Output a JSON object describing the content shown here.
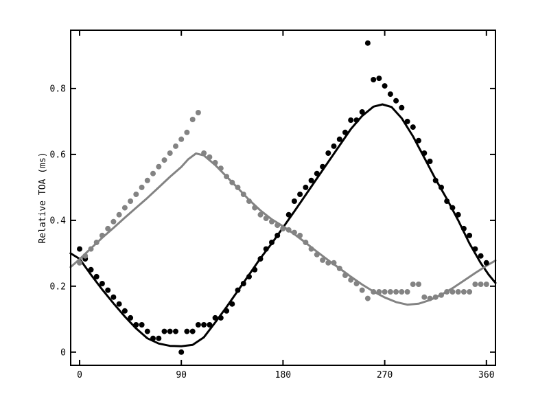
{
  "figure": {
    "background": "#ffffff",
    "description": "Scatter plot of relative pulse time of arrival versus angle (0-360 deg) for two data series (black and gray) with smooth fitted curves"
  },
  "chart_data": {
    "type": "scatter",
    "title": "",
    "xlabel": "",
    "ylabel": "Relative TOA (ms)",
    "x_ticks": [
      0,
      90,
      180,
      270,
      360
    ],
    "x_tick_labels": [
      "0",
      "90",
      "180",
      "270",
      "360"
    ],
    "y_ticks": [
      0,
      0.2,
      0.4,
      0.6,
      0.8
    ],
    "y_tick_labels": [
      "0",
      "0.2",
      "0.4",
      "0.6",
      "0.8"
    ],
    "xlim": [
      -7.9,
      368
    ],
    "ylim": [
      -0.04,
      0.977
    ],
    "grid": false,
    "legend_position": "none",
    "tick_style": "inward, all four sides, major only",
    "series": [
      {
        "name": "black-series",
        "color": "#000000",
        "marker": "filled-circle",
        "points": [
          [
            0,
            0.313
          ],
          [
            5,
            0.283
          ],
          [
            10,
            0.25
          ],
          [
            15,
            0.229
          ],
          [
            20,
            0.208
          ],
          [
            25,
            0.188
          ],
          [
            30,
            0.167
          ],
          [
            35,
            0.146
          ],
          [
            40,
            0.125
          ],
          [
            45,
            0.104
          ],
          [
            50,
            0.083
          ],
          [
            55,
            0.083
          ],
          [
            60,
            0.063
          ],
          [
            65,
            0.042
          ],
          [
            70,
            0.042
          ],
          [
            75,
            0.063
          ],
          [
            80,
            0.063
          ],
          [
            85,
            0.063
          ],
          [
            90,
            0.0
          ],
          [
            95,
            0.063
          ],
          [
            100,
            0.063
          ],
          [
            105,
            0.083
          ],
          [
            110,
            0.083
          ],
          [
            115,
            0.083
          ],
          [
            120,
            0.104
          ],
          [
            125,
            0.104
          ],
          [
            130,
            0.125
          ],
          [
            135,
            0.146
          ],
          [
            140,
            0.188
          ],
          [
            145,
            0.208
          ],
          [
            150,
            0.229
          ],
          [
            155,
            0.25
          ],
          [
            160,
            0.283
          ],
          [
            165,
            0.313
          ],
          [
            170,
            0.333
          ],
          [
            175,
            0.354
          ],
          [
            180,
            0.375
          ],
          [
            185,
            0.417
          ],
          [
            190,
            0.458
          ],
          [
            195,
            0.479
          ],
          [
            200,
            0.5
          ],
          [
            205,
            0.521
          ],
          [
            210,
            0.542
          ],
          [
            215,
            0.563
          ],
          [
            220,
            0.604
          ],
          [
            225,
            0.625
          ],
          [
            230,
            0.646
          ],
          [
            235,
            0.667
          ],
          [
            240,
            0.704
          ],
          [
            245,
            0.704
          ],
          [
            250,
            0.729
          ],
          [
            255,
            0.938
          ],
          [
            260,
            0.827
          ],
          [
            265,
            0.831
          ],
          [
            270,
            0.808
          ],
          [
            275,
            0.783
          ],
          [
            280,
            0.763
          ],
          [
            285,
            0.742
          ],
          [
            290,
            0.7
          ],
          [
            295,
            0.683
          ],
          [
            300,
            0.642
          ],
          [
            305,
            0.604
          ],
          [
            310,
            0.579
          ],
          [
            315,
            0.521
          ],
          [
            320,
            0.5
          ],
          [
            325,
            0.458
          ],
          [
            330,
            0.438
          ],
          [
            335,
            0.417
          ],
          [
            340,
            0.375
          ],
          [
            345,
            0.354
          ],
          [
            350,
            0.313
          ],
          [
            355,
            0.292
          ],
          [
            360,
            0.271
          ]
        ],
        "fit_curve": [
          [
            -8,
            0.3
          ],
          [
            0,
            0.283
          ],
          [
            10,
            0.235
          ],
          [
            20,
            0.19
          ],
          [
            30,
            0.148
          ],
          [
            40,
            0.108
          ],
          [
            50,
            0.072
          ],
          [
            60,
            0.042
          ],
          [
            70,
            0.026
          ],
          [
            80,
            0.019
          ],
          [
            90,
            0.018
          ],
          [
            100,
            0.022
          ],
          [
            110,
            0.045
          ],
          [
            120,
            0.09
          ],
          [
            130,
            0.137
          ],
          [
            140,
            0.186
          ],
          [
            150,
            0.235
          ],
          [
            160,
            0.285
          ],
          [
            170,
            0.33
          ],
          [
            180,
            0.378
          ],
          [
            190,
            0.427
          ],
          [
            200,
            0.477
          ],
          [
            210,
            0.527
          ],
          [
            220,
            0.577
          ],
          [
            230,
            0.627
          ],
          [
            240,
            0.677
          ],
          [
            250,
            0.717
          ],
          [
            260,
            0.745
          ],
          [
            268,
            0.752
          ],
          [
            276,
            0.744
          ],
          [
            285,
            0.71
          ],
          [
            295,
            0.655
          ],
          [
            305,
            0.59
          ],
          [
            315,
            0.525
          ],
          [
            325,
            0.465
          ],
          [
            335,
            0.4
          ],
          [
            345,
            0.33
          ],
          [
            355,
            0.27
          ],
          [
            362,
            0.235
          ],
          [
            368,
            0.21
          ]
        ]
      },
      {
        "name": "gray-series",
        "color": "#838383",
        "marker": "filled-circle",
        "points": [
          [
            0,
            0.271
          ],
          [
            5,
            0.292
          ],
          [
            10,
            0.313
          ],
          [
            15,
            0.333
          ],
          [
            20,
            0.354
          ],
          [
            25,
            0.375
          ],
          [
            30,
            0.396
          ],
          [
            35,
            0.417
          ],
          [
            40,
            0.438
          ],
          [
            45,
            0.458
          ],
          [
            50,
            0.479
          ],
          [
            55,
            0.5
          ],
          [
            60,
            0.521
          ],
          [
            65,
            0.542
          ],
          [
            70,
            0.563
          ],
          [
            75,
            0.583
          ],
          [
            80,
            0.604
          ],
          [
            85,
            0.625
          ],
          [
            90,
            0.646
          ],
          [
            95,
            0.667
          ],
          [
            100,
            0.706
          ],
          [
            105,
            0.727
          ],
          [
            110,
            0.604
          ],
          [
            115,
            0.592
          ],
          [
            120,
            0.575
          ],
          [
            125,
            0.558
          ],
          [
            130,
            0.533
          ],
          [
            135,
            0.515
          ],
          [
            140,
            0.5
          ],
          [
            145,
            0.479
          ],
          [
            150,
            0.458
          ],
          [
            155,
            0.438
          ],
          [
            160,
            0.417
          ],
          [
            165,
            0.406
          ],
          [
            170,
            0.396
          ],
          [
            175,
            0.385
          ],
          [
            180,
            0.375
          ],
          [
            185,
            0.371
          ],
          [
            190,
            0.363
          ],
          [
            195,
            0.354
          ],
          [
            200,
            0.333
          ],
          [
            205,
            0.313
          ],
          [
            210,
            0.296
          ],
          [
            215,
            0.279
          ],
          [
            220,
            0.271
          ],
          [
            225,
            0.271
          ],
          [
            230,
            0.254
          ],
          [
            235,
            0.233
          ],
          [
            240,
            0.219
          ],
          [
            245,
            0.208
          ],
          [
            250,
            0.188
          ],
          [
            255,
            0.163
          ],
          [
            260,
            0.183
          ],
          [
            265,
            0.183
          ],
          [
            270,
            0.183
          ],
          [
            275,
            0.183
          ],
          [
            280,
            0.183
          ],
          [
            285,
            0.183
          ],
          [
            290,
            0.183
          ],
          [
            295,
            0.206
          ],
          [
            300,
            0.206
          ],
          [
            305,
            0.167
          ],
          [
            310,
            0.163
          ],
          [
            315,
            0.167
          ],
          [
            320,
            0.173
          ],
          [
            325,
            0.183
          ],
          [
            330,
            0.183
          ],
          [
            335,
            0.183
          ],
          [
            340,
            0.183
          ],
          [
            345,
            0.183
          ],
          [
            350,
            0.206
          ],
          [
            355,
            0.206
          ],
          [
            360,
            0.206
          ]
        ],
        "fit_curve": [
          [
            -8,
            0.258
          ],
          [
            0,
            0.282
          ],
          [
            10,
            0.315
          ],
          [
            20,
            0.347
          ],
          [
            30,
            0.377
          ],
          [
            40,
            0.408
          ],
          [
            50,
            0.438
          ],
          [
            60,
            0.468
          ],
          [
            70,
            0.5
          ],
          [
            80,
            0.532
          ],
          [
            90,
            0.562
          ],
          [
            96,
            0.585
          ],
          [
            103,
            0.603
          ],
          [
            110,
            0.597
          ],
          [
            120,
            0.568
          ],
          [
            130,
            0.533
          ],
          [
            140,
            0.498
          ],
          [
            150,
            0.462
          ],
          [
            160,
            0.43
          ],
          [
            170,
            0.403
          ],
          [
            180,
            0.382
          ],
          [
            190,
            0.358
          ],
          [
            200,
            0.332
          ],
          [
            210,
            0.305
          ],
          [
            220,
            0.279
          ],
          [
            230,
            0.254
          ],
          [
            240,
            0.229
          ],
          [
            250,
            0.205
          ],
          [
            260,
            0.184
          ],
          [
            270,
            0.166
          ],
          [
            280,
            0.152
          ],
          [
            290,
            0.144
          ],
          [
            300,
            0.147
          ],
          [
            310,
            0.158
          ],
          [
            320,
            0.174
          ],
          [
            330,
            0.194
          ],
          [
            340,
            0.217
          ],
          [
            350,
            0.24
          ],
          [
            360,
            0.262
          ],
          [
            368,
            0.278
          ]
        ]
      }
    ]
  }
}
